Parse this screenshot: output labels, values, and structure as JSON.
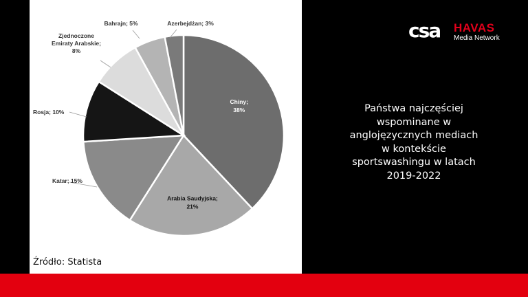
{
  "chart_data": {
    "type": "pie",
    "title": "",
    "slices": [
      {
        "name": "Chiny",
        "value": 38,
        "color": "#6d6d6d",
        "label_lines": [
          "Chiny;",
          "38%"
        ],
        "inside": true
      },
      {
        "name": "Arabia Saudyjska",
        "value": 21,
        "color": "#a8a8a8",
        "label_lines": [
          "Arabia Saudyjska;",
          "21%"
        ],
        "inside": true
      },
      {
        "name": "Katar",
        "value": 15,
        "color": "#8a8a8a",
        "label_lines": [
          "Katar; 15%"
        ],
        "inside": false
      },
      {
        "name": "Rosja",
        "value": 10,
        "color": "#151515",
        "label_lines": [
          "Rosja; 10%"
        ],
        "inside": false
      },
      {
        "name": "Zjednoczone Emiraty Arabskie",
        "value": 8,
        "color": "#dcdcdc",
        "label_lines": [
          "Zjednoczone",
          "Emiraty Arabskie;",
          "8%"
        ],
        "inside": false
      },
      {
        "name": "Bahrajn",
        "value": 5,
        "color": "#b4b4b4",
        "label_lines": [
          "Bahrajn; 5%"
        ],
        "inside": false
      },
      {
        "name": "Azerbejdżan",
        "value": 3,
        "color": "#7a7a7a",
        "label_lines": [
          "Azerbejdżan; 3%"
        ],
        "inside": false
      }
    ]
  },
  "source_text": "Źródło: Statista",
  "headline_lines": [
    "Państwa najczęściej",
    "wspominane w",
    "anglojęzycznych mediach",
    "w kontekście",
    "sportswashingu w latach",
    "2019-2022"
  ],
  "logos": {
    "csa": "csa",
    "havas": "HAVAS",
    "media_network": "Media Network"
  },
  "colors": {
    "background": "#000000",
    "chart_panel": "#ffffff",
    "accent_red": "#e3000f"
  }
}
